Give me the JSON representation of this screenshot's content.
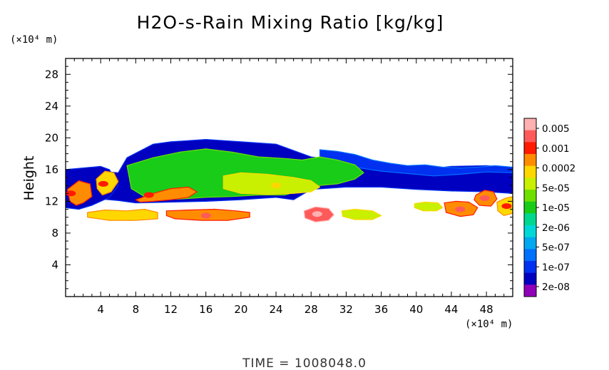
{
  "chart_data": {
    "type": "heatmap",
    "title": "H2O-s-Rain Mixing Ratio [kg/kg]",
    "ylabel": "Height",
    "y_unit": "(×10⁴ m)",
    "x_unit": "(×10⁴ m)",
    "footer": "TIME  =  1008048.0",
    "xlim": [
      0,
      51
    ],
    "ylim": [
      0,
      30
    ],
    "x_ticks": [
      4,
      8,
      12,
      16,
      20,
      24,
      28,
      32,
      36,
      40,
      44,
      48
    ],
    "y_ticks": [
      4,
      8,
      12,
      16,
      20,
      24,
      28
    ],
    "colorbar": {
      "labels": [
        "0.005",
        "0.001",
        "0.0002",
        "5e-05",
        "1e-05",
        "2e-06",
        "5e-07",
        "1e-07",
        "2e-08"
      ],
      "colors": [
        "#ffb0b0",
        "#ff5a5a",
        "#ff1a00",
        "#ff8c00",
        "#ffd700",
        "#c8f000",
        "#6ee000",
        "#18cc18",
        "#00d890",
        "#00d8d8",
        "#00a8f0",
        "#0070ff",
        "#0030f0",
        "#0000c0",
        "#9000b8"
      ]
    },
    "fields": [
      {
        "name": "main-cloud-layer",
        "x": [
          0.5,
          2,
          4,
          6,
          7,
          10,
          12,
          16,
          20,
          24,
          28,
          30,
          32,
          36,
          40,
          44,
          48,
          51,
          51,
          48,
          44,
          40,
          36,
          32,
          28,
          26,
          24,
          20,
          16,
          12,
          8,
          6,
          4,
          2,
          0.5
        ],
        "y": [
          15.2,
          15.5,
          15.8,
          15.6,
          17.5,
          19.2,
          19.5,
          19.8,
          19.5,
          19.2,
          17.6,
          17.3,
          16.8,
          16.2,
          15.9,
          16.4,
          16.5,
          16.2,
          13.0,
          13.2,
          13.3,
          13.5,
          13.8,
          13.8,
          13.5,
          12.2,
          12.5,
          12.2,
          12.0,
          11.9,
          11.8,
          12.1,
          12.3,
          12.5,
          12.5
        ],
        "level": 13
      },
      {
        "name": "left-edge-band",
        "x": [
          0,
          2,
          4,
          5,
          6,
          5,
          3,
          1.5,
          0
        ],
        "y": [
          16.0,
          16.2,
          16.4,
          16.0,
          14.0,
          12.5,
          11.5,
          11.0,
          11.2
        ],
        "level": 13
      },
      {
        "name": "anvil-top-strip",
        "x": [
          29,
          31,
          33,
          35,
          37,
          39,
          41,
          43,
          45,
          47,
          49,
          51,
          51,
          48,
          45,
          42,
          39,
          36,
          33,
          30,
          29
        ],
        "y": [
          18.5,
          18.3,
          17.9,
          17.2,
          16.8,
          16.5,
          16.6,
          16.3,
          16.2,
          16.3,
          16.5,
          16.3,
          15.6,
          15.7,
          15.4,
          15.2,
          15.5,
          15.8,
          16.3,
          17.0,
          17.5
        ],
        "level": 12
      },
      {
        "name": "core-green-main",
        "x": [
          7,
          10,
          13,
          16,
          19,
          22,
          25,
          27,
          29,
          31,
          33,
          34,
          33,
          31,
          29,
          27,
          25,
          22,
          19,
          16,
          13,
          11,
          9,
          7.5
        ],
        "y": [
          16.5,
          17.5,
          18.2,
          18.6,
          18.2,
          17.6,
          17.4,
          17.2,
          17.6,
          17.2,
          16.6,
          15.6,
          14.8,
          14.2,
          14.0,
          13.4,
          12.8,
          12.8,
          12.6,
          12.5,
          12.3,
          12.2,
          12.6,
          13.6
        ],
        "level": 7
      },
      {
        "name": "core-yellow-center",
        "x": [
          18,
          20,
          23,
          26,
          28,
          29,
          28,
          26,
          23,
          20,
          18
        ],
        "y": [
          15.2,
          15.6,
          15.4,
          15.0,
          14.6,
          13.8,
          13.2,
          13.0,
          12.9,
          13.0,
          13.6
        ],
        "level": 5
      },
      {
        "name": "core-orange-left",
        "x": [
          8,
          10,
          12,
          14,
          15,
          14,
          12,
          10,
          8.5
        ],
        "y": [
          12.2,
          13.0,
          13.6,
          13.8,
          13.2,
          12.5,
          12.2,
          12.0,
          11.9
        ],
        "level": 3
      },
      {
        "name": "arc-cell-left",
        "x": [
          0.2,
          1.5,
          2.8,
          3,
          2,
          1.2,
          0.5
        ],
        "y": [
          13.5,
          14.6,
          14.2,
          12.6,
          11.8,
          11.5,
          12.0
        ],
        "level": 3
      },
      {
        "name": "arc-cell-left-2",
        "x": [
          3.5,
          4.5,
          5.5,
          6,
          5.2,
          4.2,
          3.6
        ],
        "y": [
          14.8,
          15.8,
          15.6,
          14.5,
          13.2,
          12.8,
          13.6
        ],
        "level": 4
      },
      {
        "name": "lower-band-1",
        "x": [
          2.5,
          4.5,
          7,
          9,
          10.5,
          10.5,
          8,
          5,
          2.5
        ],
        "y": [
          10.6,
          10.9,
          10.8,
          11.0,
          10.6,
          9.8,
          9.6,
          9.6,
          10.0
        ],
        "level": 4
      },
      {
        "name": "lower-band-2",
        "x": [
          11.5,
          14,
          17,
          19.5,
          21,
          21,
          18.5,
          15.5,
          12.5,
          11.5
        ],
        "y": [
          10.8,
          10.9,
          11.0,
          10.8,
          10.6,
          10.0,
          9.6,
          9.6,
          9.8,
          10.2
        ],
        "level": 3
      },
      {
        "name": "lower-cell-28",
        "x": [
          27.2,
          28.5,
          30,
          30.6,
          30,
          28.5,
          27.3
        ],
        "y": [
          10.8,
          11.3,
          11.1,
          10.3,
          9.6,
          9.4,
          9.9
        ],
        "level": 1
      },
      {
        "name": "lower-cell-33",
        "x": [
          31.5,
          33,
          35,
          36,
          35,
          33,
          31.6
        ],
        "y": [
          10.8,
          11.0,
          10.8,
          10.2,
          9.7,
          9.7,
          10.1
        ],
        "level": 5
      },
      {
        "name": "lower-cell-41",
        "x": [
          39.8,
          41,
          42.5,
          43,
          42.3,
          40.8,
          39.8
        ],
        "y": [
          11.7,
          11.9,
          11.8,
          11.2,
          10.8,
          10.8,
          11.2
        ],
        "level": 5
      },
      {
        "name": "lower-cell-45",
        "x": [
          43.2,
          44.5,
          46,
          47,
          46.5,
          45,
          43.4
        ],
        "y": [
          11.8,
          12.0,
          11.9,
          11.2,
          10.3,
          10.1,
          10.6
        ],
        "level": 3
      },
      {
        "name": "lower-cell-47",
        "x": [
          46.8,
          47.8,
          48.8,
          49.2,
          48.5,
          47.2,
          46.6
        ],
        "y": [
          12.8,
          13.4,
          13.2,
          12.3,
          11.4,
          11.5,
          12.2
        ],
        "level": 3
      },
      {
        "name": "lower-cell-50",
        "x": [
          49.2,
          50.2,
          51,
          51,
          50,
          49.3
        ],
        "y": [
          11.9,
          12.4,
          12.6,
          10.5,
          10.2,
          10.8
        ],
        "level": 4
      }
    ],
    "peak_cells": [
      {
        "x": 0.6,
        "y": 13.0,
        "level": 2
      },
      {
        "x": 4.3,
        "y": 14.2,
        "level": 2
      },
      {
        "x": 9.5,
        "y": 12.8,
        "level": 2
      },
      {
        "x": 16.0,
        "y": 10.2,
        "level": 1
      },
      {
        "x": 28.7,
        "y": 10.4,
        "level": 0
      },
      {
        "x": 45.0,
        "y": 11.0,
        "level": 1
      },
      {
        "x": 47.8,
        "y": 12.4,
        "level": 1
      },
      {
        "x": 50.3,
        "y": 11.4,
        "level": 2
      },
      {
        "x": 24.0,
        "y": 14.0,
        "level": 4
      }
    ]
  }
}
